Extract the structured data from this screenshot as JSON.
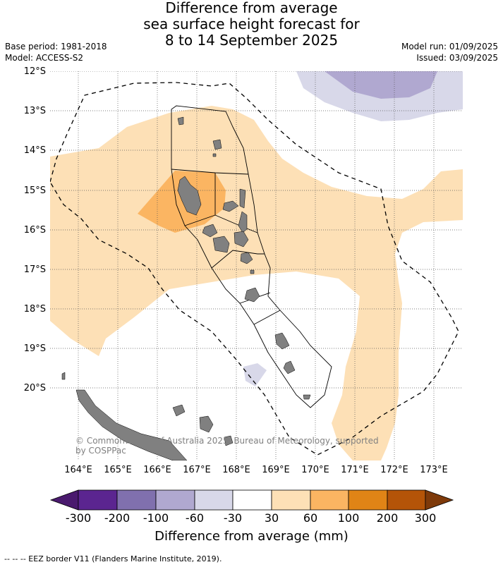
{
  "title": {
    "line1": "Difference from average",
    "line2": "sea surface height forecast for",
    "line3": "8 to 14 September 2025"
  },
  "meta": {
    "base_period": "Base period: 1981-2018",
    "model": "Model: ACCESS-S2",
    "model_run": "Model run: 01/09/2025",
    "issued": "Issued: 03/09/2025"
  },
  "map": {
    "lat_labels": [
      "12°S",
      "13°S",
      "14°S",
      "15°S",
      "16°S",
      "17°S",
      "18°S",
      "19°S",
      "20°S"
    ],
    "lon_labels": [
      "164°E",
      "165°E",
      "166°E",
      "167°E",
      "168°E",
      "169°E",
      "170°E",
      "171°E",
      "172°E",
      "173°E"
    ],
    "copyright": "© Commonwealth of Australia 2025, Bureau of Meteorology, supported",
    "copyright_line2": "by COSPPac",
    "colors": {
      "land": "#808080",
      "anom_30_60": "#fde0b6",
      "anom_60_100": "#fbb562",
      "anom_neg_60_30": "#d8d8e9",
      "anom_neg_100_60": "#b0a8d0"
    }
  },
  "colorbar": {
    "labels": [
      "-300",
      "-200",
      "-100",
      "-60",
      "-30",
      "30",
      "60",
      "100",
      "200",
      "300"
    ],
    "colors": [
      "#4a1a6e",
      "#5b2590",
      "#8070ae",
      "#b0a8d0",
      "#d8d8e9",
      "#ffffff",
      "#fde0b6",
      "#fbb562",
      "#e08416",
      "#b45408",
      "#7e3a0a"
    ],
    "title": "Difference from average (mm)"
  },
  "footer": {
    "eez_note": "--  --  -- EEZ border V11 (Flanders Marine Institute, 2019)."
  }
}
